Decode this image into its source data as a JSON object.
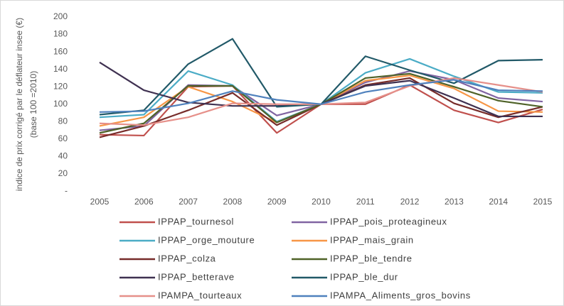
{
  "chart_data": {
    "type": "line",
    "y_label": [
      "indice de prix corrigé par le déflateur insee (€)",
      "(base 100 =2010)"
    ],
    "categories": [
      "2005",
      "2006",
      "2007",
      "2008",
      "2009",
      "2010",
      "2011",
      "2012",
      "2013",
      "2014",
      "2015"
    ],
    "ylim": [
      0,
      200
    ],
    "yticks": [
      {
        "value": 0,
        "label": "-"
      },
      20,
      40,
      60,
      80,
      100,
      120,
      140,
      160,
      180,
      200
    ],
    "grid": false,
    "series": [
      {
        "name": "IPPAP_tournesol",
        "color": "#c0504d",
        "values": [
          65,
          64,
          120,
          121,
          67,
          100,
          100,
          122,
          93,
          79,
          94
        ]
      },
      {
        "name": "IPPAP_pois_proteagineux",
        "color": "#8064a2",
        "values": [
          70,
          75,
          122,
          121,
          87,
          100,
          125,
          138,
          128,
          107,
          103
        ]
      },
      {
        "name": "IPPAP_orge_mouture",
        "color": "#4bacc6",
        "values": [
          85,
          88,
          138,
          122,
          80,
          100,
          136,
          152,
          132,
          114,
          113
        ]
      },
      {
        "name": "IPPAP_mais_grain",
        "color": "#f79646",
        "values": [
          75,
          85,
          120,
          103,
          79,
          100,
          127,
          133,
          118,
          92,
          91
        ]
      },
      {
        "name": "IPPAP_colza",
        "color": "#772c2a",
        "values": [
          62,
          75,
          93,
          113,
          76,
          100,
          122,
          130,
          101,
          85,
          97
        ]
      },
      {
        "name": "IPPAP_ble_tendre",
        "color": "#4f6228",
        "values": [
          67,
          78,
          121,
          121,
          79,
          100,
          130,
          135,
          120,
          104,
          97
        ]
      },
      {
        "name": "IPPAP_betterave",
        "color": "#3f3151",
        "values": [
          148,
          116,
          102,
          98,
          98,
          100,
          121,
          127,
          107,
          86,
          86
        ]
      },
      {
        "name": "IPPAP_ble_dur",
        "color": "#215968",
        "values": [
          88,
          93,
          146,
          175,
          97,
          100,
          155,
          139,
          124,
          150,
          151
        ]
      },
      {
        "name": "IPAMPA_tourteaux",
        "color": "#e6908a",
        "values": [
          78,
          76,
          85,
          101,
          100,
          100,
          102,
          121,
          130,
          122,
          114
        ]
      },
      {
        "name": "IPAMPA_Aliments_gros_bovins",
        "color": "#4f81bd",
        "values": [
          91,
          92,
          101,
          115,
          105,
          100,
          114,
          122,
          128,
          116,
          115
        ]
      }
    ]
  }
}
